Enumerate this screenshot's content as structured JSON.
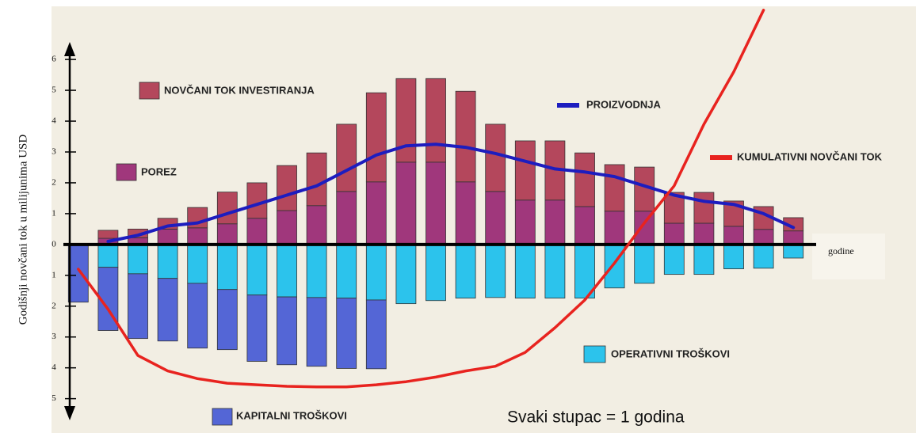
{
  "chart_data": {
    "type": "bar",
    "y_label": "Godišnji novčani tok u milijunima USD",
    "x_label": "godine",
    "annotation": "Svaki stupac = 1 godina",
    "categories": [
      null,
      null,
      null,
      null,
      null,
      null,
      null,
      null,
      null,
      null,
      null,
      null,
      null,
      null,
      null,
      null,
      null,
      null,
      null,
      null,
      null,
      null,
      null,
      null,
      null
    ],
    "ylim": [
      -5.6,
      7.8
    ],
    "yticks": [
      {
        "value": -5,
        "label": "5"
      },
      {
        "value": -4,
        "label": "4"
      },
      {
        "value": -3,
        "label": "3"
      },
      {
        "value": -2,
        "label": "2"
      },
      {
        "value": -1,
        "label": "1"
      },
      0,
      1,
      2,
      3,
      4,
      5,
      6
    ],
    "series": [
      {
        "name": "POREZ",
        "color": "#a0377c",
        "values": [
          null,
          0.2,
          0.22,
          0.5,
          0.54,
          0.67,
          0.85,
          1.1,
          1.26,
          1.72,
          2.03,
          2.67,
          2.67,
          2.03,
          1.72,
          1.44,
          1.44,
          1.23,
          1.08,
          1.08,
          0.69,
          0.69,
          0.59,
          0.49,
          0.44
        ]
      },
      {
        "name": "NOVČANI TOK INVESTIRANJA",
        "color": "#b4475c",
        "values": [
          null,
          0.26,
          0.28,
          0.35,
          0.66,
          1.03,
          1.15,
          1.46,
          1.71,
          2.18,
          2.89,
          2.71,
          2.71,
          2.94,
          2.18,
          1.92,
          1.92,
          1.74,
          1.51,
          1.43,
          1.0,
          1.0,
          0.82,
          0.74,
          0.43
        ]
      },
      {
        "name": "OPERATIVNI TROŠKOVI",
        "color": "#2cc3ec",
        "values": [
          null,
          -0.74,
          -0.95,
          -1.1,
          -1.26,
          -1.46,
          -1.64,
          -1.7,
          -1.72,
          -1.74,
          -1.8,
          -1.92,
          -1.82,
          -1.74,
          -1.72,
          -1.74,
          -1.74,
          -1.74,
          -1.41,
          -1.26,
          -0.97,
          -0.97,
          -0.79,
          -0.77,
          -0.44
        ]
      },
      {
        "name": "KAPITALNI TROŠKOVI",
        "color": "#5466d6",
        "values": [
          -1.87,
          -2.05,
          -2.1,
          -2.03,
          -2.1,
          -1.95,
          -2.15,
          -2.2,
          -2.23,
          -2.28,
          -2.23,
          null,
          null,
          null,
          null,
          null,
          null,
          null,
          null,
          null,
          null,
          null,
          null,
          null,
          null
        ]
      },
      {
        "name": "PROIZVODNJA",
        "color": "#1d1dbf",
        "type": "line",
        "values": [
          null,
          0.1,
          0.3,
          0.6,
          0.7,
          1.0,
          1.3,
          1.6,
          1.9,
          2.4,
          2.9,
          3.2,
          3.25,
          3.15,
          2.95,
          2.7,
          2.45,
          2.35,
          2.2,
          1.9,
          1.6,
          1.4,
          1.3,
          1.0,
          0.55
        ]
      },
      {
        "name": "KUMULATIVNI NOVČANI TOK",
        "color": "#e8231f",
        "type": "line",
        "values": [
          -0.8,
          -2.1,
          -3.6,
          -4.1,
          -4.35,
          -4.5,
          -4.55,
          -4.6,
          -4.62,
          -4.62,
          -4.55,
          -4.45,
          -4.3,
          -4.1,
          -3.95,
          -3.5,
          -2.7,
          -1.8,
          -0.6,
          0.7,
          1.9,
          3.9,
          5.6,
          7.6,
          null
        ]
      }
    ]
  }
}
